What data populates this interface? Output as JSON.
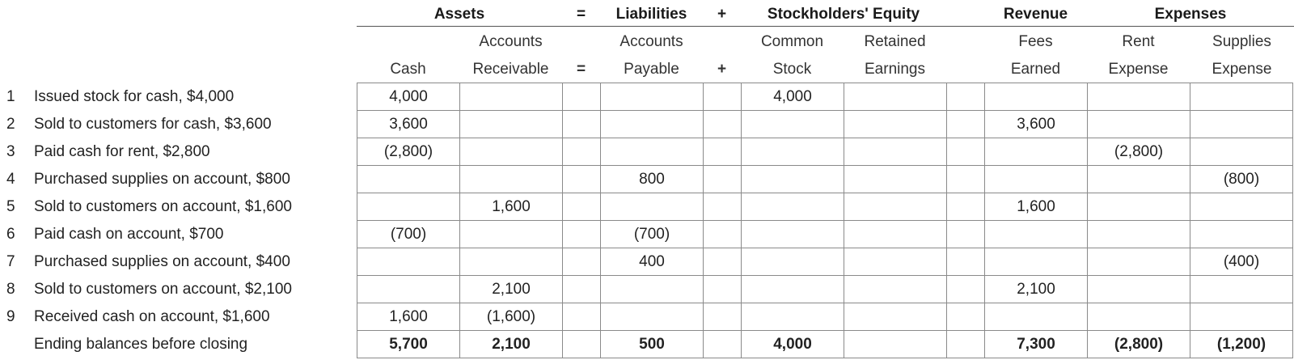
{
  "headers": {
    "assets": "Assets",
    "eq1": "=",
    "liabilities": "Liabilities",
    "plus1": "+",
    "equity": "Stockholders' Equity",
    "revenue": "Revenue",
    "expenses": "Expenses"
  },
  "subheaders": {
    "cash": [
      "",
      "Cash"
    ],
    "ar": [
      "Accounts",
      "Receivable"
    ],
    "eq2": "=",
    "ap": [
      "Accounts",
      "Payable"
    ],
    "plus2": "+",
    "cs": [
      "Common",
      "Stock"
    ],
    "re": [
      "Retained",
      "Earnings"
    ],
    "fees": [
      "Fees",
      "Earned"
    ],
    "rent": [
      "Rent",
      "Expense"
    ],
    "supplies": [
      "Supplies",
      "Expense"
    ]
  },
  "transactions": [
    {
      "num": "1",
      "desc": "Issued stock for cash, $4,000",
      "cash": "4,000",
      "ar": "",
      "ap": "",
      "cs": "4,000",
      "re": "",
      "fees": "",
      "rent": "",
      "supplies": ""
    },
    {
      "num": "2",
      "desc": "Sold to customers for cash, $3,600",
      "cash": "3,600",
      "ar": "",
      "ap": "",
      "cs": "",
      "re": "",
      "fees": "3,600",
      "rent": "",
      "supplies": ""
    },
    {
      "num": "3",
      "desc": "Paid cash for rent, $2,800",
      "cash": "(2,800)",
      "ar": "",
      "ap": "",
      "cs": "",
      "re": "",
      "fees": "",
      "rent": "(2,800)",
      "supplies": ""
    },
    {
      "num": "4",
      "desc": "Purchased supplies on account, $800",
      "cash": "",
      "ar": "",
      "ap": "800",
      "cs": "",
      "re": "",
      "fees": "",
      "rent": "",
      "supplies": "(800)"
    },
    {
      "num": "5",
      "desc": "Sold to customers on account, $1,600",
      "cash": "",
      "ar": "1,600",
      "ap": "",
      "cs": "",
      "re": "",
      "fees": "1,600",
      "rent": "",
      "supplies": ""
    },
    {
      "num": "6",
      "desc": "Paid cash on account, $700",
      "cash": "(700)",
      "ar": "",
      "ap": "(700)",
      "cs": "",
      "re": "",
      "fees": "",
      "rent": "",
      "supplies": ""
    },
    {
      "num": "7",
      "desc": "Purchased supplies on account, $400",
      "cash": "",
      "ar": "",
      "ap": "400",
      "cs": "",
      "re": "",
      "fees": "",
      "rent": "",
      "supplies": "(400)"
    },
    {
      "num": "8",
      "desc": "Sold to customers on account, $2,100",
      "cash": "",
      "ar": "2,100",
      "ap": "",
      "cs": "",
      "re": "",
      "fees": "2,100",
      "rent": "",
      "supplies": ""
    },
    {
      "num": "9",
      "desc": "Received cash on account, $1,600",
      "cash": "1,600",
      "ar": "(1,600)",
      "ap": "",
      "cs": "",
      "re": "",
      "fees": "",
      "rent": "",
      "supplies": ""
    }
  ],
  "ending": {
    "label": "Ending balances before closing",
    "cash": "5,700",
    "ar": "2,100",
    "ap": "500",
    "cs": "4,000",
    "re": "",
    "fees": "7,300",
    "rent": "(2,800)",
    "supplies": "(1,200)"
  }
}
